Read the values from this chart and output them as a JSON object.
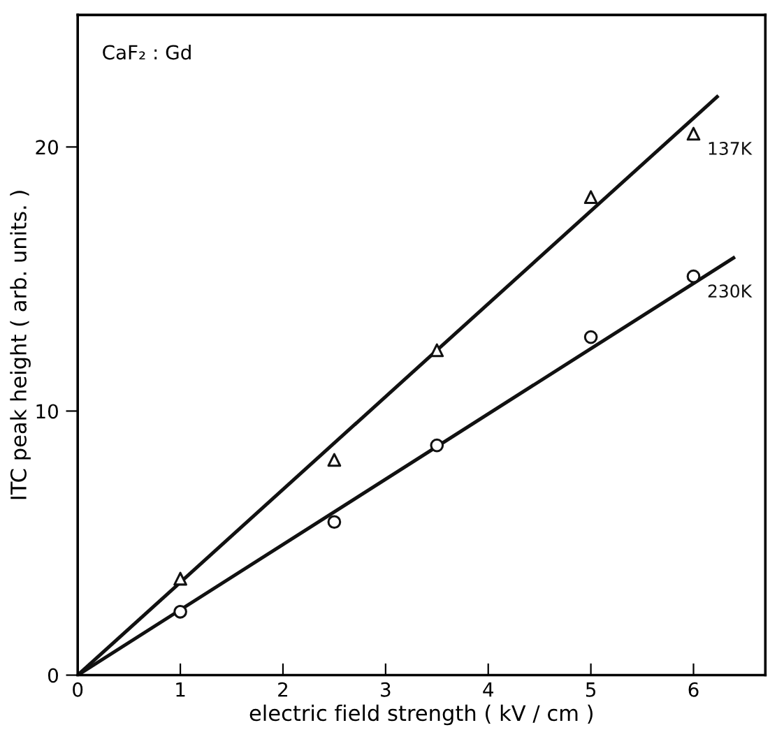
{
  "chart_data": {
    "type": "scatter",
    "xlabel": "electric field strength ( kV / cm )",
    "ylabel": "ITC peak height ( arb. units. )",
    "xlim": [
      0,
      6.7
    ],
    "ylim": [
      0,
      25
    ],
    "xticks": [
      0,
      1,
      2,
      3,
      4,
      5,
      6
    ],
    "yticks": [
      0,
      10,
      20
    ],
    "grid": false,
    "legend": false,
    "series": [
      {
        "name": "137K",
        "marker": "triangle",
        "color": "#111111",
        "x": [
          1,
          2.5,
          3.5,
          5,
          6
        ],
        "values": [
          3.65,
          8.15,
          12.3,
          18.1,
          20.5
        ]
      },
      {
        "name": "230K",
        "marker": "circle",
        "color": "#111111",
        "x": [
          1,
          2.5,
          3.5,
          5,
          6
        ],
        "values": [
          2.4,
          5.8,
          8.7,
          12.8,
          15.1
        ]
      },
      {
        "type": "line",
        "marker": "none",
        "line_style": "solid",
        "color": "#111111",
        "x": [
          0,
          6.23
        ],
        "values": [
          0,
          21.9
        ]
      },
      {
        "type": "line",
        "marker": "none",
        "line_style": "solid",
        "color": "#111111",
        "x": [
          0,
          6.39
        ],
        "values": [
          0,
          15.8
        ]
      }
    ],
    "annotations": [
      "CaF₂ : Gd"
    ]
  }
}
